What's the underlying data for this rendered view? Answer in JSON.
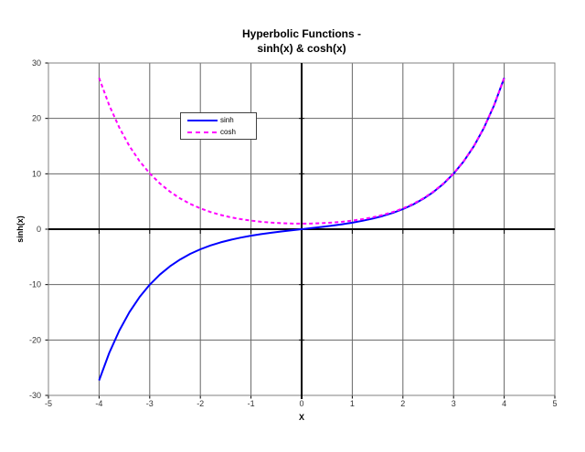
{
  "chart_data": {
    "type": "line",
    "title": "Hyperbolic Functions - sinh(x) & cosh(x)",
    "title_lines": [
      "Hyperbolic Functions -",
      "sinh(x) & cosh(x)"
    ],
    "xlabel": "X",
    "ylabel": "sinh(x)",
    "xlim": [
      -5,
      5
    ],
    "ylim": [
      -30,
      30
    ],
    "x_ticks": [
      -5,
      -4,
      -3,
      -2,
      -1,
      0,
      1,
      2,
      3,
      4,
      5
    ],
    "y_ticks": [
      -30,
      -20,
      -10,
      0,
      10,
      20,
      30
    ],
    "grid": true,
    "legend_position": "upper-left-inside",
    "x": [
      -4,
      -3.8,
      -3.6,
      -3.4,
      -3.2,
      -3,
      -2.8,
      -2.6,
      -2.4,
      -2.2,
      -2,
      -1.8,
      -1.6,
      -1.4,
      -1.2,
      -1,
      -0.8,
      -0.6,
      -0.4,
      -0.2,
      0,
      0.2,
      0.4,
      0.6,
      0.8,
      1,
      1.2,
      1.4,
      1.6,
      1.8,
      2,
      2.2,
      2.4,
      2.6,
      2.8,
      3,
      3.2,
      3.4,
      3.6,
      3.8,
      4
    ],
    "series": [
      {
        "name": "sinh",
        "color": "#0000ff",
        "style": "solid",
        "values": [
          -27.29,
          -22.339,
          -18.285,
          -14.965,
          -12.246,
          -10.018,
          -8.192,
          -6.695,
          -5.466,
          -4.457,
          -3.627,
          -2.942,
          -2.376,
          -1.904,
          -1.509,
          -1.175,
          -0.888,
          -0.637,
          -0.411,
          -0.201,
          0,
          0.201,
          0.411,
          0.637,
          0.888,
          1.175,
          1.509,
          1.904,
          2.376,
          2.942,
          3.627,
          4.457,
          5.466,
          6.695,
          8.192,
          10.018,
          12.246,
          14.965,
          18.285,
          22.339,
          27.29
        ]
      },
      {
        "name": "cosh",
        "color": "#ff00ff",
        "style": "dashed",
        "values": [
          27.308,
          22.362,
          18.313,
          14.999,
          12.287,
          10.068,
          8.253,
          6.769,
          5.557,
          4.568,
          3.762,
          3.107,
          2.577,
          2.151,
          1.811,
          1.543,
          1.337,
          1.185,
          1.081,
          1.02,
          1,
          1.02,
          1.081,
          1.185,
          1.337,
          1.543,
          1.811,
          2.151,
          2.577,
          3.107,
          3.762,
          4.568,
          5.557,
          6.769,
          8.253,
          10.068,
          12.287,
          14.999,
          18.313,
          22.362,
          27.308
        ]
      }
    ],
    "colors": {
      "grid": "#666666",
      "axis": "#000000",
      "plot_border": "#808080",
      "tick_label": "#333333"
    }
  }
}
